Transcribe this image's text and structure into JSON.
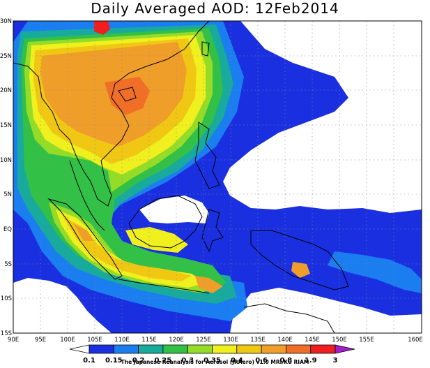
{
  "title": "Daily Averaged AOD: 12Feb2014",
  "credit": "The Japanese Reanalysis for Aerosol (JRAero) v1.0 MRI/KU RIAM",
  "lat_labels": [
    "30N",
    "25N",
    "20N",
    "15N",
    "10N",
    "5N",
    "EQ",
    "5S",
    "10S",
    "15S"
  ],
  "lon_labels": [
    "90E",
    "95E",
    "100E",
    "105E",
    "110E",
    "115E",
    "120E",
    "125E",
    "130E",
    "135E",
    "140E",
    "145E",
    "150E",
    "155E",
    "160E"
  ],
  "colorbar": {
    "levels": [
      "0.1",
      "0.15",
      "0.2",
      "0.25",
      "0.3",
      "0.35",
      "0.4",
      "0.6",
      "0.8",
      "1.9",
      "3"
    ],
    "colors": [
      "#1a30e0",
      "#1a7ef0",
      "#18aa9c",
      "#32c046",
      "#94dc28",
      "#f0f01e",
      "#f0c814",
      "#f09e2a",
      "#f06e26",
      "#f01e1e",
      "#a01ec8"
    ]
  },
  "palette": {
    "water_bg": "#1a30e0",
    "clear": "#ffffff"
  }
}
